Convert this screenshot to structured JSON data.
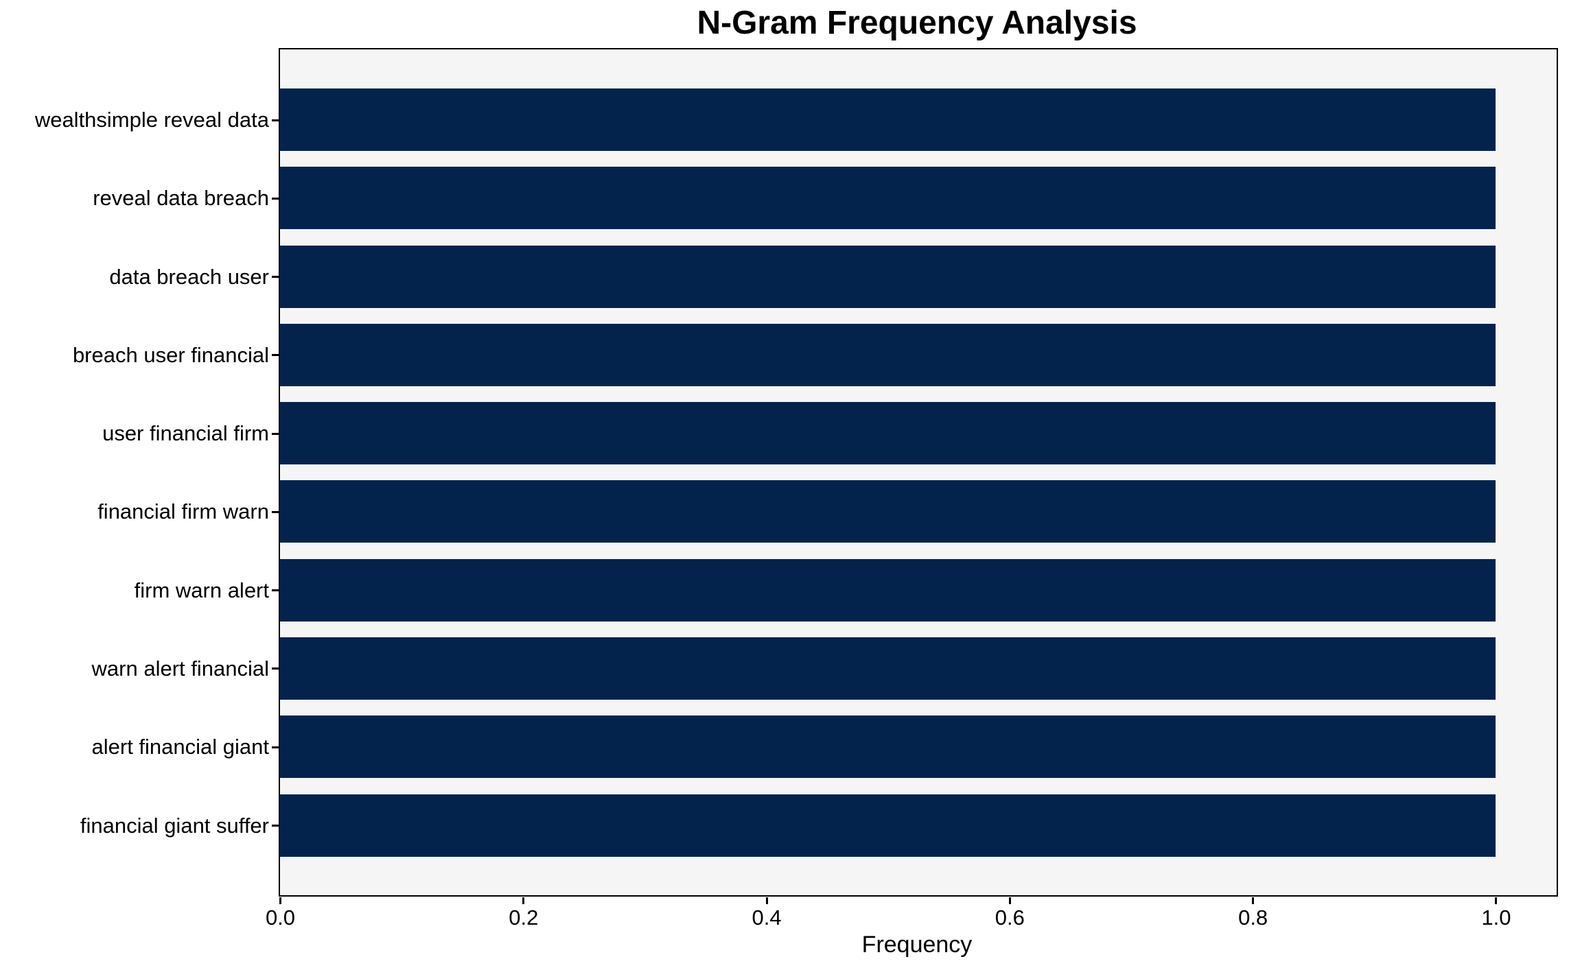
{
  "chart_data": {
    "type": "bar",
    "orientation": "horizontal",
    "title": "N-Gram Frequency Analysis",
    "xlabel": "Frequency",
    "ylabel": "",
    "categories": [
      "wealthsimple reveal data",
      "reveal data breach",
      "data breach user",
      "breach user financial",
      "user financial firm",
      "financial firm warn",
      "firm warn alert",
      "warn alert financial",
      "alert financial giant",
      "financial giant suffer"
    ],
    "values": [
      1.0,
      1.0,
      1.0,
      1.0,
      1.0,
      1.0,
      1.0,
      1.0,
      1.0,
      1.0
    ],
    "xticks": [
      "0.0",
      "0.2",
      "0.4",
      "0.6",
      "0.8",
      "1.0"
    ],
    "xlim": [
      0,
      1.05
    ],
    "grid": false,
    "legend": false,
    "colors": {
      "bar": "#03234d",
      "plot_bg": "#f5f5f5",
      "figure_bg": "#ffffff",
      "spine": "#000000",
      "text": "#000000"
    }
  }
}
